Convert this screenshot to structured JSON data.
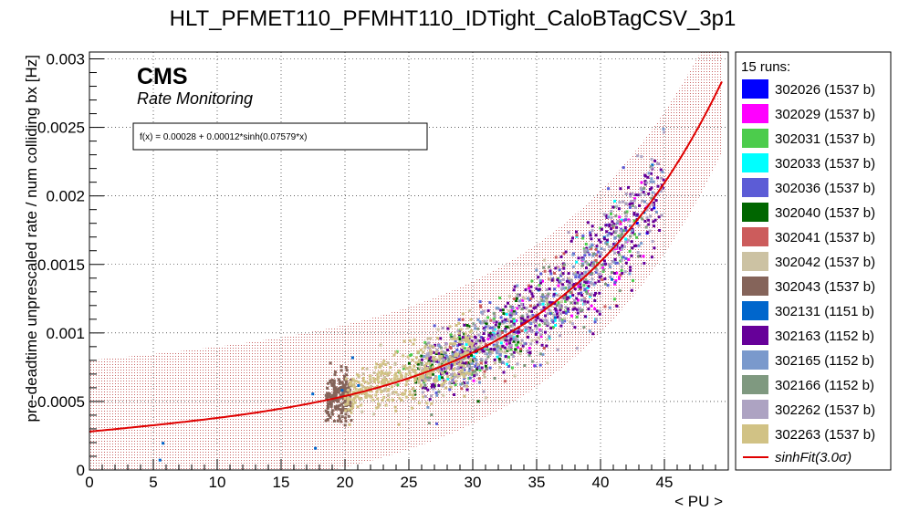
{
  "chart_data": {
    "type": "scatter",
    "title": "HLT_PFMET110_PFMHT110_IDTight_CaloBTagCSV_3p1",
    "xlabel": "< PU >",
    "ylabel": "pre-deadtime unprescaled rate / num colliding bx [Hz]",
    "xlim": [
      0,
      50
    ],
    "ylim": [
      0,
      0.00305
    ],
    "x_ticks": [
      0,
      5,
      10,
      15,
      20,
      25,
      30,
      35,
      40,
      45
    ],
    "x_tick_labels": [
      "0",
      "5",
      "10",
      "15",
      "20",
      "25",
      "30",
      "35",
      "40",
      "45"
    ],
    "y_ticks": [
      0,
      0.0005,
      0.001,
      0.0015,
      0.002,
      0.0025,
      0.003
    ],
    "y_tick_labels": [
      "0",
      "0.0005",
      "0.001",
      "0.0015",
      "0.002",
      "0.0025",
      "0.003"
    ],
    "grid": true,
    "logo": "CMS",
    "logo_subtitle": "Rate Monitoring",
    "fit_formula": "f(x) = 0.00028 + 0.00012*sinh(0.07579*x)",
    "fit": {
      "a": 0.00028,
      "b": 0.00012,
      "c": 0.07579,
      "band_sigma": 3.0,
      "band_halfwidth": 0.00052,
      "x_range": [
        0,
        49.7
      ],
      "color": "#e00000"
    },
    "legend_header": "15 runs:",
    "legend_position": "right",
    "series": [
      {
        "name": "302026 (1537 b)",
        "color": "#0000ff",
        "x_range": [
          42.6,
          44.2
        ],
        "points": 3
      },
      {
        "name": "302029 (1537 b)",
        "color": "#ff00ff",
        "x_range": [
          30,
          44
        ],
        "points": 60
      },
      {
        "name": "302031 (1537 b)",
        "color": "#4ccc4c",
        "x_range": [
          24,
          43
        ],
        "points": 90
      },
      {
        "name": "302033 (1537 b)",
        "color": "#00ffff",
        "x_range": [
          27,
          42
        ],
        "points": 40
      },
      {
        "name": "302036 (1537 b)",
        "color": "#5c5cd6",
        "x_range": [
          27,
          43
        ],
        "points": 120
      },
      {
        "name": "302040 (1537 b)",
        "color": "#006600",
        "x_range": [
          25,
          34
        ],
        "points": 70
      },
      {
        "name": "302041 (1537 b)",
        "color": "#cc5c5c",
        "x_range": [
          28,
          42
        ],
        "points": 60
      },
      {
        "name": "302042 (1537 b)",
        "color": "#ccc2a3",
        "x_range": [
          21,
          38
        ],
        "points": 200
      },
      {
        "name": "302043 (1537 b)",
        "color": "#85645a",
        "x_range": [
          18.5,
          20.5
        ],
        "points": 200
      },
      {
        "name": "302131 (1151 b)",
        "color": "#0066cc",
        "x_range": [
          1,
          45
        ],
        "points": 15
      },
      {
        "name": "302163 (1152 b)",
        "color": "#660099",
        "x_range": [
          26,
          45
        ],
        "points": 400
      },
      {
        "name": "302165 (1152 b)",
        "color": "#7a99cc",
        "x_range": [
          26,
          45
        ],
        "points": 120
      },
      {
        "name": "302166 (1152 b)",
        "color": "#7f9980",
        "x_range": [
          26,
          44
        ],
        "points": 120
      },
      {
        "name": "302262 (1537 b)",
        "color": "#ada3c2",
        "x_range": [
          26,
          45
        ],
        "points": 220
      },
      {
        "name": "302263 (1537 b)",
        "color": "#d1c285",
        "x_range": [
          20,
          30
        ],
        "points": 350
      }
    ],
    "fit_legend_label": "sinhFit(3.0σ)"
  }
}
